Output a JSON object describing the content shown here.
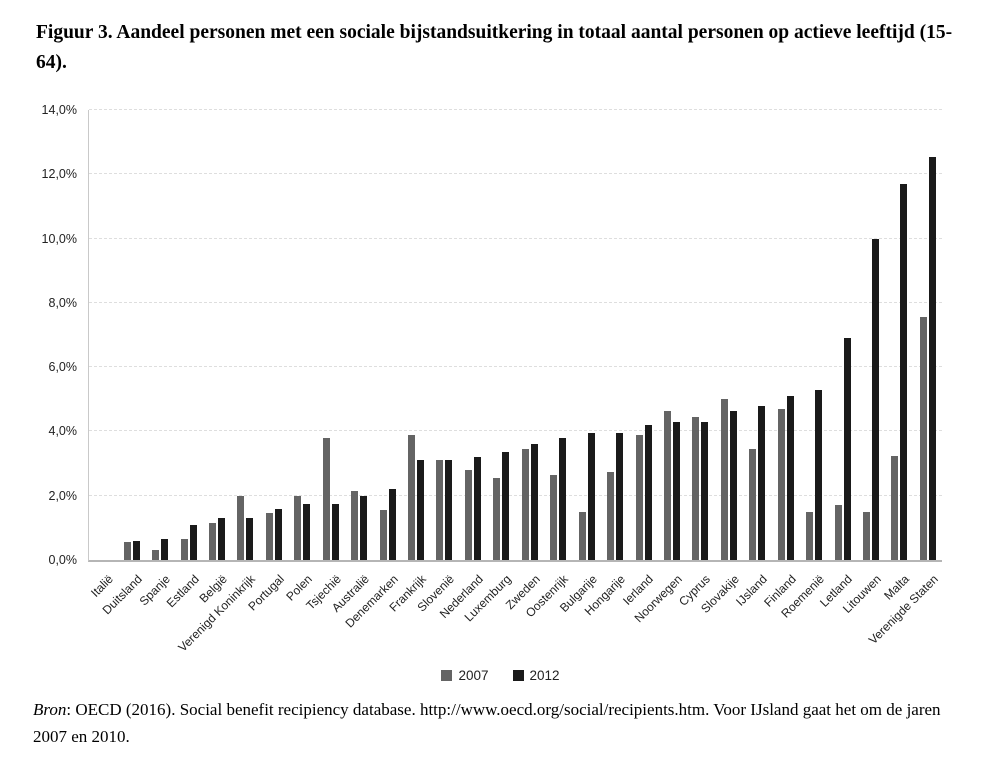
{
  "chart_data": {
    "type": "bar",
    "title": "Figuur 3. Aandeel personen met een sociale bijstandsuitkering in totaal aantal personen op actieve leeftijd (15-64).",
    "categories": [
      "Italië",
      "Duitsland",
      "Spanje",
      "Estland",
      "België",
      "Verenigd Koninkrijk",
      "Portugal",
      "Polen",
      "Tsjechië",
      "Australië",
      "Denemarken",
      "Frankrijk",
      "Slovenië",
      "Nederland",
      "Luxemburg",
      "Zweden",
      "Oostenrijk",
      "Bulgarije",
      "Hongarije",
      "Ierland",
      "Noorwegen",
      "Cyprus",
      "Slovakije",
      "IJsland",
      "Finland",
      "Roemenië",
      "Letland",
      "Litouwen",
      "Malta",
      "Verenigde Staten"
    ],
    "series": [
      {
        "name": "2007",
        "color": "#646464",
        "values": [
          0,
          0.55,
          0.3,
          0.65,
          1.15,
          2.0,
          1.45,
          2.0,
          3.8,
          2.15,
          1.55,
          3.9,
          3.1,
          2.8,
          2.55,
          3.45,
          2.65,
          1.5,
          2.75,
          3.9,
          4.65,
          4.45,
          5.0,
          3.45,
          4.7,
          1.5,
          1.7,
          1.5,
          3.25,
          7.55
        ]
      },
      {
        "name": "2012",
        "color": "#1a1a1a",
        "values": [
          0,
          0.6,
          0.65,
          1.1,
          1.3,
          1.3,
          1.6,
          1.75,
          1.75,
          2.0,
          2.2,
          3.1,
          3.1,
          3.2,
          3.35,
          3.6,
          3.8,
          3.95,
          3.95,
          4.2,
          4.3,
          4.3,
          4.65,
          4.8,
          5.1,
          5.3,
          6.9,
          10.0,
          11.7,
          12.55
        ]
      }
    ],
    "xlabel": "",
    "ylabel": "",
    "y_ticks": [
      "0,0%",
      "2,0%",
      "4,0%",
      "6,0%",
      "8,0%",
      "10,0%",
      "12,0%",
      "14,0%"
    ],
    "ylim": [
      0,
      14
    ],
    "grid": "horizontal-dashed",
    "legend_position": "bottom-center",
    "value_unit": "percent"
  },
  "source": {
    "label": "Bron",
    "text": ": OECD (2016). Social benefit recipiency database. http://www.oecd.org/social/recipients.htm. Voor IJsland gaat het om de jaren 2007 en 2010."
  }
}
